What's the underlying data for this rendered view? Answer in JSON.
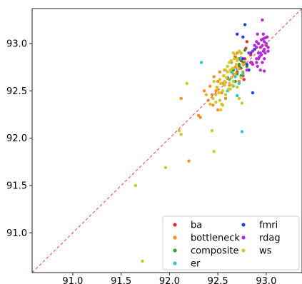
{
  "chart_data": {
    "type": "scatter",
    "title": "",
    "xlabel": "",
    "ylabel": "",
    "xlim": [
      90.58,
      93.37
    ],
    "ylim": [
      90.58,
      93.37
    ],
    "xticks": [
      "91.0",
      "91.5",
      "92.0",
      "92.5",
      "93.0"
    ],
    "yticks": [
      "91.0",
      "91.5",
      "92.0",
      "92.5",
      "93.0"
    ],
    "grid": false,
    "diagonal": {
      "style": "dashed",
      "color": "#f0605a",
      "from": [
        90.58,
        90.58
      ],
      "to": [
        93.37,
        93.37
      ]
    },
    "legend": {
      "placement": "lower-right",
      "columns": 2
    },
    "series": [
      {
        "name": "ba",
        "color": "#e8302a",
        "points": [
          [
            92.72,
            92.76
          ],
          [
            92.78,
            92.84
          ],
          [
            92.8,
            93.02
          ],
          [
            92.85,
            92.8
          ],
          [
            92.7,
            92.7
          ],
          [
            92.76,
            92.66
          ],
          [
            92.74,
            92.9
          ],
          [
            92.82,
            92.72
          ],
          [
            92.68,
            92.86
          ],
          [
            92.77,
            92.62
          ],
          [
            92.79,
            92.95
          ],
          [
            92.72,
            92.6
          ],
          [
            92.84,
            92.88
          ],
          [
            92.74,
            92.82
          ]
        ]
      },
      {
        "name": "bottleneck",
        "color": "#ff8a2a",
        "points": [
          [
            92.12,
            92.42
          ],
          [
            92.2,
            91.76
          ],
          [
            92.3,
            92.24
          ],
          [
            92.32,
            92.22
          ],
          [
            92.36,
            92.5
          ],
          [
            92.4,
            92.4
          ],
          [
            92.42,
            92.55
          ],
          [
            92.44,
            92.46
          ],
          [
            92.46,
            92.65
          ],
          [
            92.48,
            92.5
          ],
          [
            92.5,
            92.6
          ],
          [
            92.52,
            92.7
          ],
          [
            92.54,
            92.48
          ],
          [
            92.55,
            92.58
          ],
          [
            92.57,
            92.72
          ],
          [
            92.6,
            92.63
          ],
          [
            92.62,
            92.56
          ],
          [
            92.64,
            92.8
          ],
          [
            92.66,
            92.68
          ],
          [
            92.68,
            92.75
          ],
          [
            92.7,
            92.9
          ],
          [
            92.72,
            92.6
          ],
          [
            92.74,
            92.85
          ],
          [
            92.76,
            92.7
          ],
          [
            92.78,
            92.8
          ],
          [
            92.58,
            92.42
          ],
          [
            92.45,
            92.35
          ],
          [
            92.5,
            92.3
          ]
        ]
      },
      {
        "name": "composite",
        "color": "#2ca02c",
        "points": [
          [
            92.6,
            92.64
          ],
          [
            92.64,
            92.7
          ],
          [
            92.66,
            92.72
          ],
          [
            92.7,
            92.68
          ],
          [
            92.72,
            92.78
          ],
          [
            92.74,
            92.74
          ],
          [
            92.76,
            92.8
          ],
          [
            92.78,
            92.93
          ],
          [
            92.68,
            92.6
          ],
          [
            92.72,
            92.84
          ],
          [
            92.8,
            92.76
          ],
          [
            92.74,
            92.66
          ]
        ]
      },
      {
        "name": "er",
        "color": "#2ec6cc",
        "points": [
          [
            92.33,
            92.8
          ],
          [
            92.62,
            92.62
          ],
          [
            92.64,
            92.7
          ],
          [
            92.66,
            92.55
          ],
          [
            92.68,
            92.65
          ],
          [
            92.7,
            92.73
          ],
          [
            92.72,
            92.58
          ],
          [
            92.74,
            92.84
          ],
          [
            92.75,
            92.07
          ],
          [
            92.76,
            92.68
          ],
          [
            92.6,
            92.5
          ],
          [
            92.7,
            92.45
          ]
        ]
      },
      {
        "name": "fmri",
        "color": "#2040e0",
        "points": [
          [
            92.7,
            93.1
          ],
          [
            92.76,
            93.07
          ],
          [
            92.78,
            93.2
          ],
          [
            92.8,
            92.78
          ],
          [
            92.82,
            92.72
          ],
          [
            92.86,
            92.48
          ],
          [
            92.88,
            92.94
          ],
          [
            92.76,
            92.84
          ],
          [
            92.84,
            92.9
          ]
        ]
      },
      {
        "name": "rdag",
        "color": "#b728d6",
        "points": [
          [
            92.9,
            92.96
          ],
          [
            92.92,
            93.0
          ],
          [
            92.94,
            92.9
          ],
          [
            92.95,
            93.04
          ],
          [
            92.96,
            92.98
          ],
          [
            92.97,
            93.1
          ],
          [
            92.98,
            92.94
          ],
          [
            92.99,
            93.06
          ],
          [
            93.0,
            92.98
          ],
          [
            93.01,
            93.07
          ],
          [
            93.02,
            92.96
          ],
          [
            92.93,
            92.86
          ],
          [
            92.91,
            93.1
          ],
          [
            92.96,
            93.25
          ],
          [
            92.98,
            92.71
          ],
          [
            92.9,
            92.84
          ],
          [
            92.86,
            92.78
          ],
          [
            92.88,
            92.98
          ],
          [
            92.94,
            92.72
          ],
          [
            93.0,
            93.0
          ],
          [
            92.97,
            92.92
          ],
          [
            92.92,
            92.9
          ],
          [
            92.98,
            93.02
          ],
          [
            92.95,
            92.88
          ],
          [
            92.82,
            92.9
          ],
          [
            92.84,
            92.8
          ],
          [
            92.9,
            93.02
          ],
          [
            93.02,
            92.92
          ],
          [
            92.96,
            92.8
          ],
          [
            92.8,
            92.72
          ],
          [
            92.92,
            92.84
          ],
          [
            92.98,
            92.84
          ],
          [
            92.94,
            92.96
          ],
          [
            92.86,
            92.92
          ],
          [
            92.9,
            92.8
          ],
          [
            92.99,
            92.9
          ],
          [
            92.91,
            92.76
          ],
          [
            92.97,
            93.05
          ]
        ]
      },
      {
        "name": "ws",
        "color": "#d4c628",
        "points": [
          [
            91.65,
            91.5
          ],
          [
            91.72,
            90.7
          ],
          [
            91.96,
            91.69
          ],
          [
            92.1,
            92.08
          ],
          [
            92.12,
            92.04
          ],
          [
            92.18,
            92.58
          ],
          [
            92.38,
            92.46
          ],
          [
            92.42,
            92.36
          ],
          [
            92.45,
            92.42
          ],
          [
            92.48,
            92.46
          ],
          [
            92.5,
            92.52
          ],
          [
            92.52,
            92.4
          ],
          [
            92.53,
            92.3
          ],
          [
            92.54,
            92.36
          ],
          [
            92.55,
            92.5
          ],
          [
            92.56,
            92.66
          ],
          [
            92.57,
            92.6
          ],
          [
            92.58,
            92.46
          ],
          [
            92.6,
            92.7
          ],
          [
            92.62,
            92.58
          ],
          [
            92.63,
            92.52
          ],
          [
            92.64,
            92.64
          ],
          [
            92.65,
            92.74
          ],
          [
            92.66,
            92.6
          ],
          [
            92.67,
            92.84
          ],
          [
            92.68,
            92.68
          ],
          [
            92.7,
            92.82
          ],
          [
            92.71,
            92.74
          ],
          [
            92.72,
            92.92
          ],
          [
            92.74,
            92.64
          ],
          [
            92.76,
            92.78
          ],
          [
            92.75,
            92.37
          ],
          [
            92.72,
            92.42
          ],
          [
            92.7,
            92.54
          ],
          [
            92.68,
            92.88
          ],
          [
            92.62,
            92.8
          ],
          [
            92.58,
            92.72
          ],
          [
            92.52,
            92.62
          ],
          [
            92.48,
            92.38
          ],
          [
            92.55,
            92.35
          ],
          [
            92.46,
            92.6
          ],
          [
            92.44,
            92.08
          ],
          [
            92.46,
            91.86
          ],
          [
            92.56,
            92.66
          ],
          [
            92.6,
            92.76
          ],
          [
            92.64,
            92.82
          ],
          [
            92.66,
            92.9
          ],
          [
            92.7,
            92.84
          ],
          [
            92.74,
            92.9
          ],
          [
            92.61,
            92.52
          ],
          [
            92.57,
            92.56
          ],
          [
            92.59,
            92.64
          ],
          [
            92.63,
            92.72
          ],
          [
            92.69,
            92.78
          ],
          [
            92.51,
            92.48
          ],
          [
            92.49,
            92.54
          ],
          [
            92.53,
            92.58
          ],
          [
            92.65,
            92.56
          ]
        ]
      }
    ]
  }
}
